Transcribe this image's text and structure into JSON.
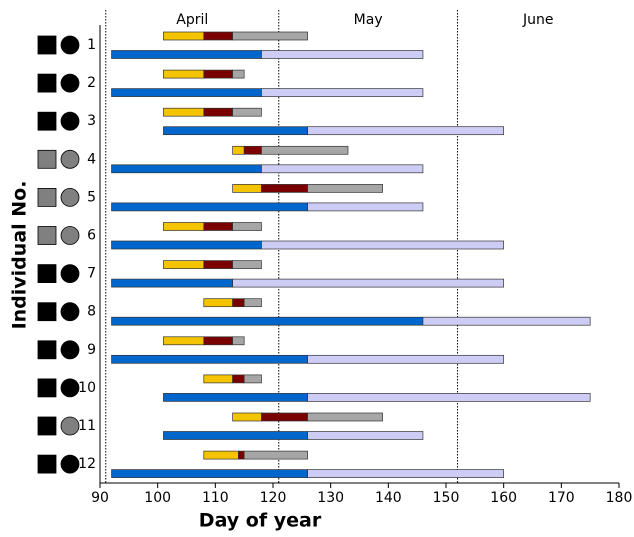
{
  "chart_data": {
    "type": "gantt",
    "x_label": "Day of year",
    "y_label": "Individual No.",
    "xlim": [
      90,
      180
    ],
    "xticks": [
      90,
      100,
      110,
      120,
      130,
      140,
      150,
      160,
      170,
      180
    ],
    "months": [
      {
        "label": "April",
        "start": 91,
        "end": 121
      },
      {
        "label": "May",
        "start": 121,
        "end": 152
      },
      {
        "label": "June",
        "start": 152,
        "end": 180
      }
    ],
    "upper_colors": [
      "#f5c400",
      "#7a0000",
      "#a6a6a6"
    ],
    "lower_colors": [
      "#0066cc",
      "#ccccf5"
    ],
    "individuals": [
      {
        "label": "1",
        "square": "#000000",
        "circle": "#000000",
        "upper": [
          [
            101,
            108
          ],
          [
            108,
            113
          ],
          [
            113,
            126
          ]
        ],
        "lower": [
          [
            92,
            118
          ],
          [
            118,
            146
          ]
        ]
      },
      {
        "label": "2",
        "square": "#000000",
        "circle": "#000000",
        "upper": [
          [
            101,
            108
          ],
          [
            108,
            113
          ],
          [
            113,
            115
          ]
        ],
        "lower": [
          [
            92,
            118
          ],
          [
            118,
            146
          ]
        ]
      },
      {
        "label": "3",
        "square": "#000000",
        "circle": "#000000",
        "upper": [
          [
            101,
            108
          ],
          [
            108,
            113
          ],
          [
            113,
            118
          ]
        ],
        "lower": [
          [
            101,
            126
          ],
          [
            126,
            160
          ]
        ]
      },
      {
        "label": "4",
        "square": "#808080",
        "circle": "#808080",
        "upper": [
          [
            113,
            115
          ],
          [
            115,
            118
          ],
          [
            118,
            133
          ]
        ],
        "lower": [
          [
            92,
            118
          ],
          [
            118,
            146
          ]
        ]
      },
      {
        "label": "5",
        "square": "#808080",
        "circle": "#808080",
        "upper": [
          [
            113,
            118
          ],
          [
            118,
            126
          ],
          [
            126,
            139
          ]
        ],
        "lower": [
          [
            92,
            126
          ],
          [
            126,
            146
          ]
        ]
      },
      {
        "label": "6",
        "square": "#808080",
        "circle": "#808080",
        "upper": [
          [
            101,
            108
          ],
          [
            108,
            113
          ],
          [
            113,
            118
          ]
        ],
        "lower": [
          [
            92,
            118
          ],
          [
            118,
            160
          ]
        ]
      },
      {
        "label": "7",
        "square": "#000000",
        "circle": "#000000",
        "upper": [
          [
            101,
            108
          ],
          [
            108,
            113
          ],
          [
            113,
            118
          ]
        ],
        "lower": [
          [
            92,
            113
          ],
          [
            113,
            160
          ]
        ]
      },
      {
        "label": "8",
        "square": "#000000",
        "circle": "#000000",
        "upper": [
          [
            108,
            113
          ],
          [
            113,
            115
          ],
          [
            115,
            118
          ]
        ],
        "lower": [
          [
            92,
            146
          ],
          [
            146,
            175
          ]
        ]
      },
      {
        "label": "9",
        "square": "#000000",
        "circle": "#000000",
        "upper": [
          [
            101,
            108
          ],
          [
            108,
            113
          ],
          [
            113,
            115
          ]
        ],
        "lower": [
          [
            92,
            126
          ],
          [
            126,
            160
          ]
        ]
      },
      {
        "label": "10",
        "square": "#000000",
        "circle": "#000000",
        "upper": [
          [
            108,
            113
          ],
          [
            113,
            115
          ],
          [
            115,
            118
          ]
        ],
        "lower": [
          [
            101,
            126
          ],
          [
            126,
            175
          ]
        ]
      },
      {
        "label": "11",
        "square": "#000000",
        "circle": "#808080",
        "upper": [
          [
            113,
            118
          ],
          [
            118,
            126
          ],
          [
            126,
            139
          ]
        ],
        "lower": [
          [
            101,
            126
          ],
          [
            126,
            146
          ]
        ]
      },
      {
        "label": "12",
        "square": "#000000",
        "circle": "#000000",
        "upper": [
          [
            108,
            114
          ],
          [
            114,
            115
          ],
          [
            115,
            126
          ]
        ],
        "lower": [
          [
            92,
            126
          ],
          [
            126,
            160
          ]
        ]
      }
    ]
  }
}
